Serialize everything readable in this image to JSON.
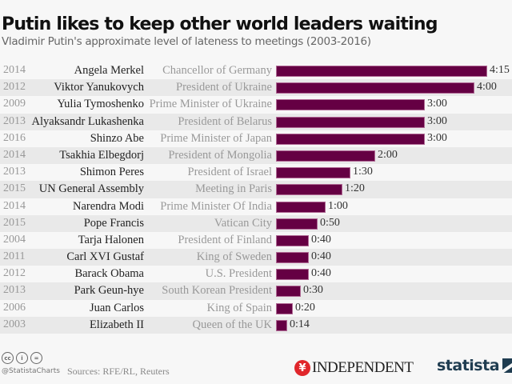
{
  "header": {
    "title": "Putin likes to keep other world leaders waiting",
    "subtitle": "Vladimir Putin's approximate level of lateness to meetings (2003-2016)"
  },
  "rows": [
    {
      "year": "2014",
      "name": "Angela Merkel",
      "role": "Chancellor of Germany",
      "label": "4:15",
      "minutes": 255
    },
    {
      "year": "2012",
      "name": "Viktor Yanukovych",
      "role": "President of Ukraine",
      "label": "4:00",
      "minutes": 240
    },
    {
      "year": "2009",
      "name": "Yulia Tymoshenko",
      "role": "Prime Minister of Ukraine",
      "label": "3:00",
      "minutes": 180
    },
    {
      "year": "2013",
      "name": "Alyaksandr Lukashenka",
      "role": "President of Belarus",
      "label": "3:00",
      "minutes": 180
    },
    {
      "year": "2016",
      "name": "Shinzo Abe",
      "role": "Prime Minister of Japan",
      "label": "3:00",
      "minutes": 180
    },
    {
      "year": "2014",
      "name": "Tsakhia Elbegdorj",
      "role": "President of Mongolia",
      "label": "2:00",
      "minutes": 120
    },
    {
      "year": "2013",
      "name": "Shimon Peres",
      "role": "President of Israel",
      "label": "1:30",
      "minutes": 90
    },
    {
      "year": "2015",
      "name": "UN General Assembly",
      "role": "Meeting in Paris",
      "label": "1:20",
      "minutes": 80
    },
    {
      "year": "2014",
      "name": "Narendra Modi",
      "role": "Prime Minister Of India",
      "label": "1:00",
      "minutes": 60
    },
    {
      "year": "2015",
      "name": "Pope Francis",
      "role": "Vatican City",
      "label": "0:50",
      "minutes": 50
    },
    {
      "year": "2004",
      "name": "Tarja Halonen",
      "role": "President of Finland",
      "label": "0:40",
      "minutes": 40
    },
    {
      "year": "2011",
      "name": "Carl XVI Gustaf",
      "role": "King of Sweden",
      "label": "0:40",
      "minutes": 40
    },
    {
      "year": "2012",
      "name": "Barack Obama",
      "role": "U.S. President",
      "label": "0:40",
      "minutes": 40
    },
    {
      "year": "2013",
      "name": "Park Geun-hye",
      "role": "South Korean President",
      "label": "0:30",
      "minutes": 30
    },
    {
      "year": "2006",
      "name": "Juan Carlos",
      "role": "King of Spain",
      "label": "0:20",
      "minutes": 20
    },
    {
      "year": "2003",
      "name": "Elizabeth II",
      "role": "Queen of the UK",
      "label": "0:14",
      "minutes": 14
    }
  ],
  "footer": {
    "license_icons": [
      "cc",
      "i",
      "="
    ],
    "handle": "@StatistaCharts",
    "sources": "Sources: RFE/RL, Reuters",
    "independent_logo_glyph": "¥",
    "independent": "INDEPENDENT",
    "statista": "statista"
  },
  "colors": {
    "bar": "#650043",
    "bar_border": "#b06a95",
    "stripe": "#e9e9e9",
    "statista": "#1f3c50",
    "independent_red": "#e0262b"
  },
  "chart_data": {
    "type": "bar",
    "orientation": "horizontal",
    "title": "Putin likes to keep other world leaders waiting",
    "subtitle": "Vladimir Putin's approximate level of lateness to meetings (2003-2016)",
    "xlabel": "",
    "ylabel": "",
    "units": "hours:minutes",
    "categories": [
      "Angela Merkel",
      "Viktor Yanukovych",
      "Yulia Tymoshenko",
      "Alyaksandr Lukashenka",
      "Shinzo Abe",
      "Tsakhia Elbegdorj",
      "Shimon Peres",
      "UN General Assembly",
      "Narendra Modi",
      "Pope Francis",
      "Tarja Halonen",
      "Carl XVI Gustaf",
      "Barack Obama",
      "Park Geun-hye",
      "Juan Carlos",
      "Elizabeth II"
    ],
    "years": [
      "2014",
      "2012",
      "2009",
      "2013",
      "2016",
      "2014",
      "2013",
      "2015",
      "2014",
      "2015",
      "2004",
      "2011",
      "2012",
      "2013",
      "2006",
      "2003"
    ],
    "roles": [
      "Chancellor of Germany",
      "President of Ukraine",
      "Prime Minister of Ukraine",
      "President of Belarus",
      "Prime Minister of Japan",
      "President of Mongolia",
      "President of Israel",
      "Meeting in Paris",
      "Prime Minister Of India",
      "Vatican City",
      "President of Finland",
      "King of Sweden",
      "U.S. President",
      "South Korean President",
      "King of Spain",
      "Queen of the UK"
    ],
    "labels": [
      "4:15",
      "4:00",
      "3:00",
      "3:00",
      "3:00",
      "2:00",
      "1:30",
      "1:20",
      "1:00",
      "0:50",
      "0:40",
      "0:40",
      "0:40",
      "0:30",
      "0:20",
      "0:14"
    ],
    "values": [
      255,
      240,
      180,
      180,
      180,
      120,
      90,
      80,
      60,
      50,
      40,
      40,
      40,
      30,
      20,
      14
    ],
    "value_unit": "minutes",
    "grid": false,
    "legend": null,
    "source": "Sources: RFE/RL, Reuters"
  }
}
